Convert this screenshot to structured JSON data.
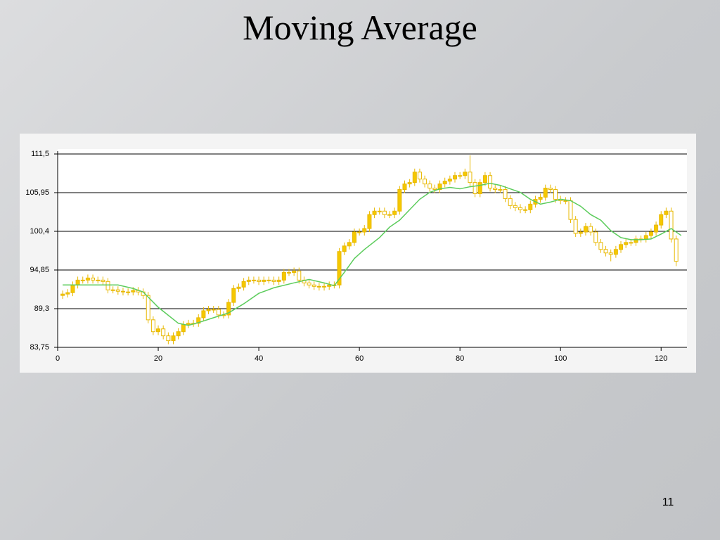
{
  "slide": {
    "title": "Moving Average",
    "page_number": "11"
  },
  "chart_data": {
    "type": "candlestick",
    "x": [
      1,
      2,
      3,
      4,
      5,
      6,
      7,
      8,
      9,
      10,
      11,
      12,
      13,
      14,
      15,
      16,
      17,
      18,
      19,
      20,
      21,
      22,
      23,
      24,
      25,
      26,
      27,
      28,
      29,
      30,
      31,
      32,
      33,
      34,
      35,
      36,
      37,
      38,
      39,
      40,
      41,
      42,
      43,
      44,
      45,
      46,
      47,
      48,
      49,
      50,
      51,
      52,
      53,
      54,
      55,
      56,
      57,
      58,
      59,
      60,
      61,
      62,
      63,
      64,
      65,
      66,
      67,
      68,
      69,
      70,
      71,
      72,
      73,
      74,
      75,
      76,
      77,
      78,
      79,
      80,
      81,
      82,
      83,
      84,
      85,
      86,
      87,
      88,
      89,
      90,
      91,
      92,
      93,
      94,
      95,
      96,
      97,
      98,
      99,
      100,
      101,
      102,
      103,
      104,
      105,
      106,
      107,
      108,
      109,
      110,
      111,
      112,
      113,
      114,
      115,
      116,
      117,
      118,
      119,
      120,
      121,
      122,
      123
    ],
    "open": [
      91.2,
      91.4,
      91.6,
      92.7,
      93.4,
      93.4,
      93.7,
      93.4,
      93.4,
      93.2,
      92.0,
      92.0,
      91.8,
      91.7,
      91.7,
      91.9,
      91.7,
      91.2,
      87.7,
      86.0,
      86.4,
      85.4,
      84.7,
      85.4,
      86.0,
      87.0,
      87.2,
      87.2,
      88.0,
      89.0,
      89.2,
      89.2,
      88.4,
      88.4,
      90.2,
      92.2,
      92.4,
      93.2,
      93.4,
      93.4,
      93.2,
      93.4,
      93.4,
      93.2,
      93.4,
      94.5,
      94.5,
      94.7,
      93.4,
      93.0,
      92.7,
      92.5,
      92.4,
      92.5,
      92.7,
      92.7,
      97.5,
      98.3,
      98.8,
      100.3,
      100.3,
      100.8,
      102.8,
      103.3,
      103.3,
      102.8,
      102.8,
      103.3,
      106.4,
      107.2,
      107.4,
      108.9,
      107.9,
      107.2,
      106.6,
      106.4,
      107.2,
      107.6,
      107.9,
      108.4,
      108.4,
      108.9,
      107.4,
      105.8,
      107.4,
      108.4,
      106.6,
      106.4,
      106.4,
      105.1,
      104.1,
      103.8,
      103.5,
      103.5,
      104.3,
      105.0,
      105.3,
      106.6,
      106.4,
      105.0,
      104.8,
      104.8,
      102.1,
      100.1,
      100.3,
      101.1,
      100.3,
      98.8,
      97.8,
      97.3,
      97.1,
      97.8,
      98.5,
      98.8,
      98.8,
      99.3,
      99.3,
      99.8,
      100.3,
      101.3,
      102.8,
      103.3,
      99.3
    ],
    "high": [
      91.9,
      92.1,
      93.2,
      93.9,
      93.9,
      94.2,
      94.2,
      93.9,
      93.9,
      93.7,
      92.5,
      92.5,
      92.3,
      92.2,
      92.4,
      92.4,
      92.2,
      91.7,
      88.2,
      86.9,
      86.9,
      85.9,
      85.9,
      86.5,
      87.5,
      87.7,
      87.7,
      88.5,
      89.5,
      89.7,
      89.7,
      89.7,
      88.9,
      90.7,
      92.7,
      92.9,
      93.7,
      93.9,
      93.9,
      93.9,
      93.9,
      93.9,
      93.9,
      93.9,
      95.0,
      95.0,
      95.2,
      95.2,
      93.9,
      93.5,
      93.2,
      93.0,
      93.0,
      93.2,
      93.2,
      98.0,
      98.8,
      99.3,
      100.8,
      100.8,
      101.3,
      103.3,
      103.8,
      103.8,
      103.8,
      103.3,
      103.8,
      106.9,
      107.7,
      107.9,
      109.4,
      109.4,
      108.4,
      107.7,
      107.1,
      107.7,
      108.1,
      108.4,
      108.9,
      108.9,
      109.4,
      111.3,
      107.9,
      107.9,
      108.9,
      108.9,
      107.1,
      106.9,
      106.9,
      105.6,
      104.6,
      104.3,
      104.0,
      104.8,
      105.5,
      105.8,
      107.1,
      107.1,
      106.9,
      105.5,
      105.3,
      105.3,
      102.6,
      100.8,
      101.6,
      101.6,
      100.8,
      99.3,
      98.3,
      97.8,
      98.3,
      99.0,
      99.3,
      99.3,
      99.8,
      99.8,
      100.3,
      100.8,
      101.8,
      103.3,
      103.8,
      103.8,
      99.8
    ],
    "low": [
      90.7,
      90.9,
      91.1,
      92.2,
      92.9,
      92.9,
      92.9,
      92.9,
      92.7,
      91.5,
      91.5,
      91.3,
      91.2,
      91.2,
      91.2,
      91.2,
      90.7,
      87.2,
      85.5,
      85.5,
      84.9,
      84.2,
      84.2,
      84.9,
      85.5,
      86.5,
      86.7,
      86.7,
      87.5,
      88.5,
      88.7,
      87.9,
      87.9,
      87.9,
      89.7,
      91.7,
      91.9,
      92.7,
      92.9,
      92.7,
      92.7,
      92.9,
      92.7,
      92.7,
      92.9,
      94.0,
      94.0,
      92.9,
      92.5,
      92.2,
      92.0,
      91.9,
      91.9,
      92.0,
      92.2,
      92.2,
      97.0,
      97.8,
      98.3,
      99.8,
      99.8,
      100.3,
      102.3,
      102.8,
      102.3,
      102.3,
      102.3,
      102.8,
      105.9,
      106.7,
      106.9,
      107.4,
      106.7,
      106.1,
      105.9,
      105.9,
      106.7,
      107.1,
      107.4,
      107.9,
      107.9,
      106.9,
      105.3,
      105.3,
      106.9,
      106.1,
      105.9,
      105.9,
      104.6,
      103.6,
      103.3,
      103.0,
      103.0,
      103.0,
      103.8,
      104.5,
      104.8,
      105.9,
      104.5,
      104.3,
      104.3,
      101.6,
      99.6,
      99.6,
      99.8,
      99.8,
      98.3,
      97.3,
      96.8,
      96.1,
      96.6,
      97.3,
      98.0,
      98.3,
      98.3,
      98.8,
      98.8,
      99.3,
      99.8,
      100.8,
      102.3,
      98.8,
      95.4
    ],
    "close": [
      91.4,
      91.6,
      92.7,
      93.4,
      93.4,
      93.7,
      93.4,
      93.4,
      93.2,
      92.0,
      92.0,
      91.8,
      91.7,
      91.7,
      91.9,
      91.7,
      91.2,
      87.7,
      86.0,
      86.4,
      85.4,
      84.7,
      85.4,
      86.0,
      87.0,
      87.2,
      87.2,
      88.0,
      89.0,
      89.2,
      89.2,
      88.4,
      88.4,
      90.2,
      92.2,
      92.4,
      93.2,
      93.4,
      93.4,
      93.2,
      93.4,
      93.4,
      93.2,
      93.4,
      94.5,
      94.5,
      94.7,
      93.4,
      93.0,
      92.7,
      92.5,
      92.4,
      92.5,
      92.7,
      92.7,
      97.5,
      98.3,
      98.8,
      100.3,
      100.3,
      100.8,
      102.8,
      103.3,
      103.3,
      102.8,
      102.8,
      103.3,
      106.4,
      107.2,
      107.4,
      108.9,
      107.9,
      107.2,
      106.6,
      106.4,
      107.2,
      107.6,
      107.9,
      108.4,
      108.4,
      108.9,
      107.4,
      105.8,
      107.4,
      108.4,
      106.6,
      106.4,
      106.4,
      105.1,
      104.1,
      103.8,
      103.5,
      103.5,
      104.3,
      105.0,
      105.3,
      106.6,
      106.4,
      105.0,
      104.8,
      104.8,
      102.1,
      100.1,
      100.3,
      101.1,
      100.3,
      98.8,
      97.8,
      97.3,
      97.1,
      97.8,
      98.5,
      98.8,
      98.8,
      99.3,
      99.3,
      99.8,
      100.3,
      101.3,
      102.8,
      103.3,
      99.3,
      96.1
    ],
    "up_color": "#f5c800",
    "down_color": "#ffffff",
    "outline_color": "#e8b800",
    "xlim": [
      0,
      125
    ],
    "xticks": [
      0,
      20,
      40,
      60,
      80,
      100,
      120
    ],
    "ylim": [
      83.75,
      111.5
    ],
    "yticks": [
      {
        "value": 83.75,
        "label": "83,75"
      },
      {
        "value": 89.3,
        "label": "89,3"
      },
      {
        "value": 94.85,
        "label": "94,85"
      },
      {
        "value": 100.4,
        "label": "100,4"
      },
      {
        "value": 105.95,
        "label": "105,95"
      },
      {
        "value": 111.5,
        "label": "111,5"
      }
    ],
    "grid": true,
    "overlay": {
      "type": "line",
      "color": "#5ccc5c",
      "x": [
        1,
        12,
        15,
        17,
        20,
        24,
        26,
        28,
        31,
        34,
        37,
        40,
        43,
        47,
        50,
        53,
        55,
        57,
        59,
        61,
        64,
        66,
        68,
        70,
        72,
        74,
        76,
        78,
        80,
        82,
        84,
        86,
        88,
        90,
        92,
        94,
        96,
        98,
        100,
        102,
        104,
        106,
        108,
        110,
        112,
        114,
        116,
        118,
        120,
        122,
        124
      ],
      "values": [
        92.7,
        92.7,
        92.2,
        91.7,
        89.5,
        87.2,
        86.9,
        87.3,
        88.0,
        88.7,
        90.0,
        91.5,
        92.3,
        93.0,
        93.5,
        93.0,
        92.6,
        94.5,
        96.5,
        97.8,
        99.5,
        101.0,
        102.0,
        103.5,
        105.0,
        106.0,
        106.5,
        106.7,
        106.5,
        106.8,
        107.0,
        107.3,
        107.0,
        106.5,
        106.0,
        105.0,
        104.3,
        104.6,
        105.0,
        104.8,
        104.0,
        102.8,
        102.0,
        100.5,
        99.5,
        99.2,
        99.2,
        99.3,
        100.0,
        100.8,
        99.8
      ]
    }
  }
}
